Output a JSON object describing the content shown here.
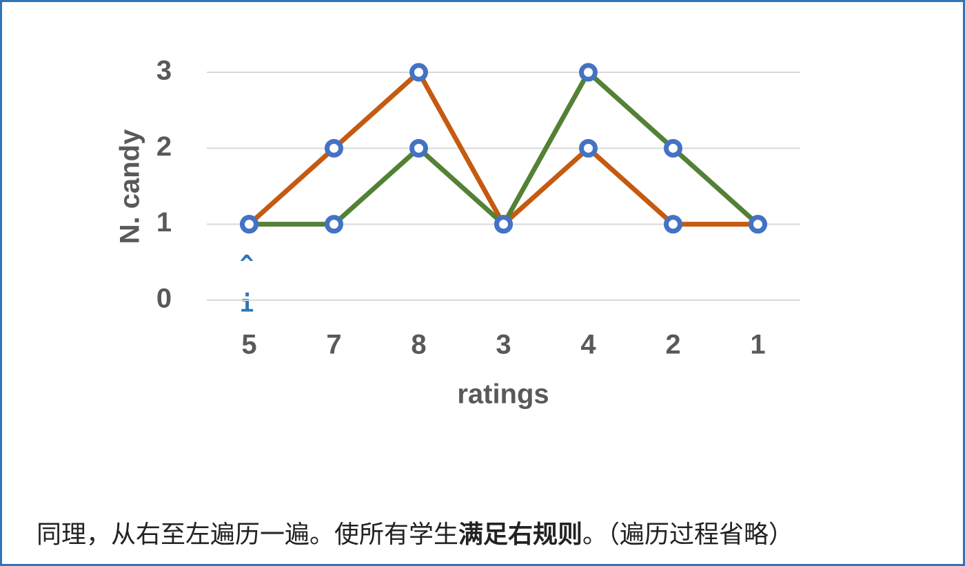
{
  "chart_data": {
    "type": "line",
    "categories": [
      "5",
      "7",
      "8",
      "3",
      "4",
      "2",
      "1"
    ],
    "series": [
      {
        "color": "#c55a11",
        "values": [
          1,
          2,
          3,
          1,
          2,
          1,
          1
        ]
      },
      {
        "color": "#538135",
        "values": [
          1,
          1,
          2,
          1,
          3,
          2,
          1
        ]
      }
    ],
    "marker_color": "#4472c4",
    "ylim": [
      0,
      3
    ],
    "yticks": [
      0,
      1,
      2,
      3
    ],
    "grid": true,
    "xlabel": "ratings",
    "ylabel": "N. candy",
    "annotations": [
      "^",
      "i"
    ]
  },
  "caption": [
    "同理，从右至左遍历一遍。使所有学生",
    "满足右规则",
    "。（遍历过程省略）"
  ]
}
